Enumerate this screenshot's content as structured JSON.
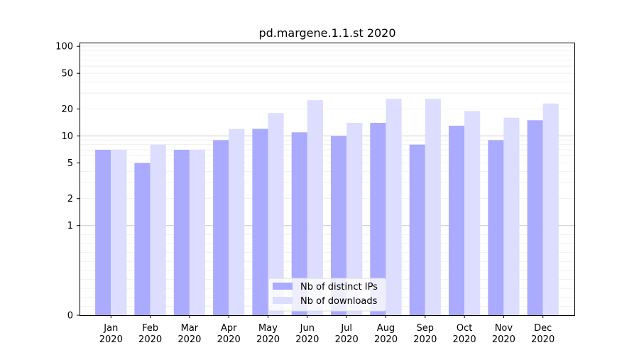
{
  "chart_data": {
    "type": "bar",
    "title": "pd.margene.1.1.st 2020",
    "xlabel": "",
    "ylabel": "",
    "yscale": "symlog",
    "ylim": [
      0,
      110
    ],
    "yticks": [
      0,
      1,
      2,
      5,
      10,
      20,
      50,
      100
    ],
    "grid": "horizontal",
    "legend_position": "bottom-center",
    "categories": [
      "Jan\n2020",
      "Feb\n2020",
      "Mar\n2020",
      "Apr\n2020",
      "May\n2020",
      "Jun\n2020",
      "Jul\n2020",
      "Aug\n2020",
      "Sep\n2020",
      "Oct\n2020",
      "Nov\n2020",
      "Dec\n2020"
    ],
    "series": [
      {
        "name": "Nb of distinct IPs",
        "color": "#aaaaff",
        "values": [
          7,
          5,
          7,
          9,
          12,
          11,
          10,
          14,
          8,
          13,
          9,
          15
        ]
      },
      {
        "name": "Nb of downloads",
        "color": "#ddddff",
        "values": [
          7,
          8,
          7,
          12,
          18,
          25,
          14,
          26,
          26,
          19,
          16,
          23
        ]
      }
    ]
  }
}
